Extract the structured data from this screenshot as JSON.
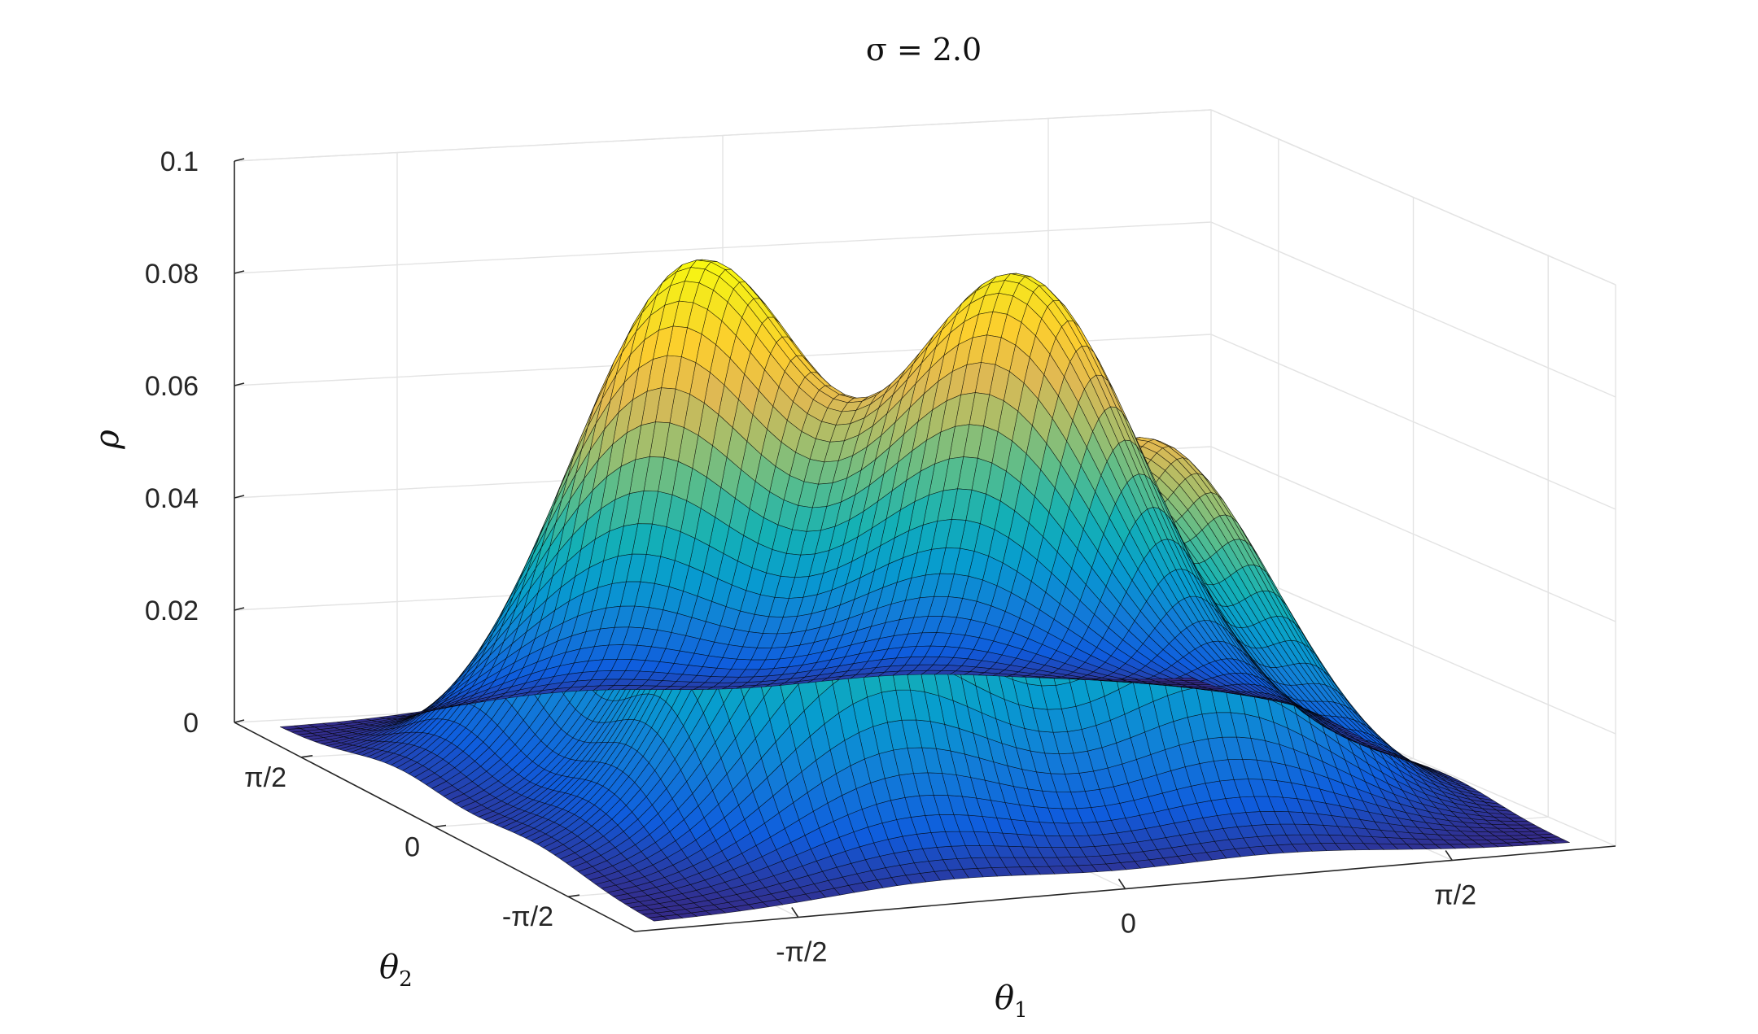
{
  "chart_data": {
    "type": "surface",
    "title": "σ = 2.0",
    "xlabel": "θ",
    "xlabel_sub": "1",
    "ylabel": "θ",
    "ylabel_sub": "2",
    "zlabel": "ρ",
    "xlim": [
      -2.356,
      2.356
    ],
    "ylim": [
      -2.356,
      2.356
    ],
    "zlim": [
      0,
      0.1
    ],
    "x_ticks": [
      {
        "value": -1.5708,
        "label": "-π/2"
      },
      {
        "value": 0,
        "label": "0"
      },
      {
        "value": 1.5708,
        "label": "π/2"
      }
    ],
    "y_ticks": [
      {
        "value": -1.5708,
        "label": "-π/2"
      },
      {
        "value": 0,
        "label": "0"
      },
      {
        "value": 1.5708,
        "label": "π/2"
      }
    ],
    "z_ticks": [
      {
        "value": 0,
        "label": "0"
      },
      {
        "value": 0.02,
        "label": "0.02"
      },
      {
        "value": 0.04,
        "label": "0.04"
      },
      {
        "value": 0.06,
        "label": "0.06"
      },
      {
        "value": 0.08,
        "label": "0.08"
      },
      {
        "value": 0.1,
        "label": "0.1"
      }
    ],
    "grid": true,
    "colormap": "parula",
    "mesh_edge_color": "#000000",
    "peaks": [
      {
        "theta1": -0.785,
        "theta2": 0.785,
        "rho": 0.088
      },
      {
        "theta1": -0.785,
        "theta2": -0.785,
        "rho": 0.072
      },
      {
        "theta1": 0.785,
        "theta2": 0.785,
        "rho": 0.082
      },
      {
        "theta1": 0.785,
        "theta2": -0.785,
        "rho": 0.063
      }
    ]
  }
}
